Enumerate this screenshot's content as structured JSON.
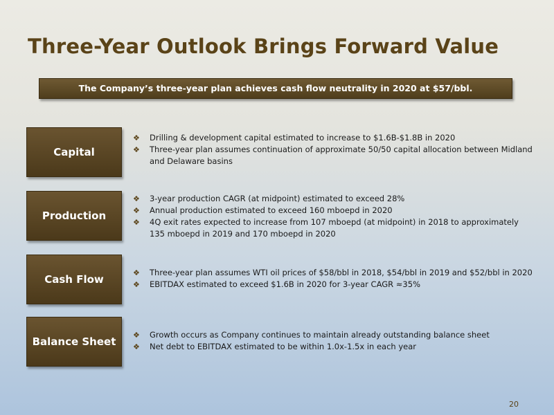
{
  "title": "Three-Year Outlook Brings Forward Value",
  "banner": "The Company’s three-year plan achieves cash flow neutrality in 2020 at $57/bbl.",
  "bullet_mark": "❖",
  "sections": [
    {
      "label": "Capital",
      "bullets": [
        "Drilling & development capital estimated to increase to $1.6B-$1.8B in 2020",
        "Three-year plan assumes continuation of approximate 50/50 capital allocation between Midland and Delaware basins"
      ]
    },
    {
      "label": "Production",
      "bullets": [
        "3-year production CAGR (at midpoint) estimated to exceed 28%",
        "Annual production estimated to exceed 160 mboepd in 2020",
        "4Q exit rates expected to  increase from 107 mboepd (at midpoint) in 2018 to approximately 135 mboepd in 2019 and 170 mboepd in 2020"
      ]
    },
    {
      "label": "Cash Flow",
      "bullets": [
        "Three-year plan assumes WTI oil prices of $58/bbl in 2018, $54/bbl in 2019 and $52/bbl in 2020",
        "EBITDAX estimated to exceed $1.6B in 2020 for 3-year CAGR ≈35%"
      ]
    },
    {
      "label": "Balance Sheet",
      "bullets": [
        "Growth occurs as Company continues to maintain already outstanding balance sheet",
        "Net debt to EBITDAX estimated to be within 1.0x-1.5x in each year"
      ]
    }
  ],
  "page_number": "20"
}
